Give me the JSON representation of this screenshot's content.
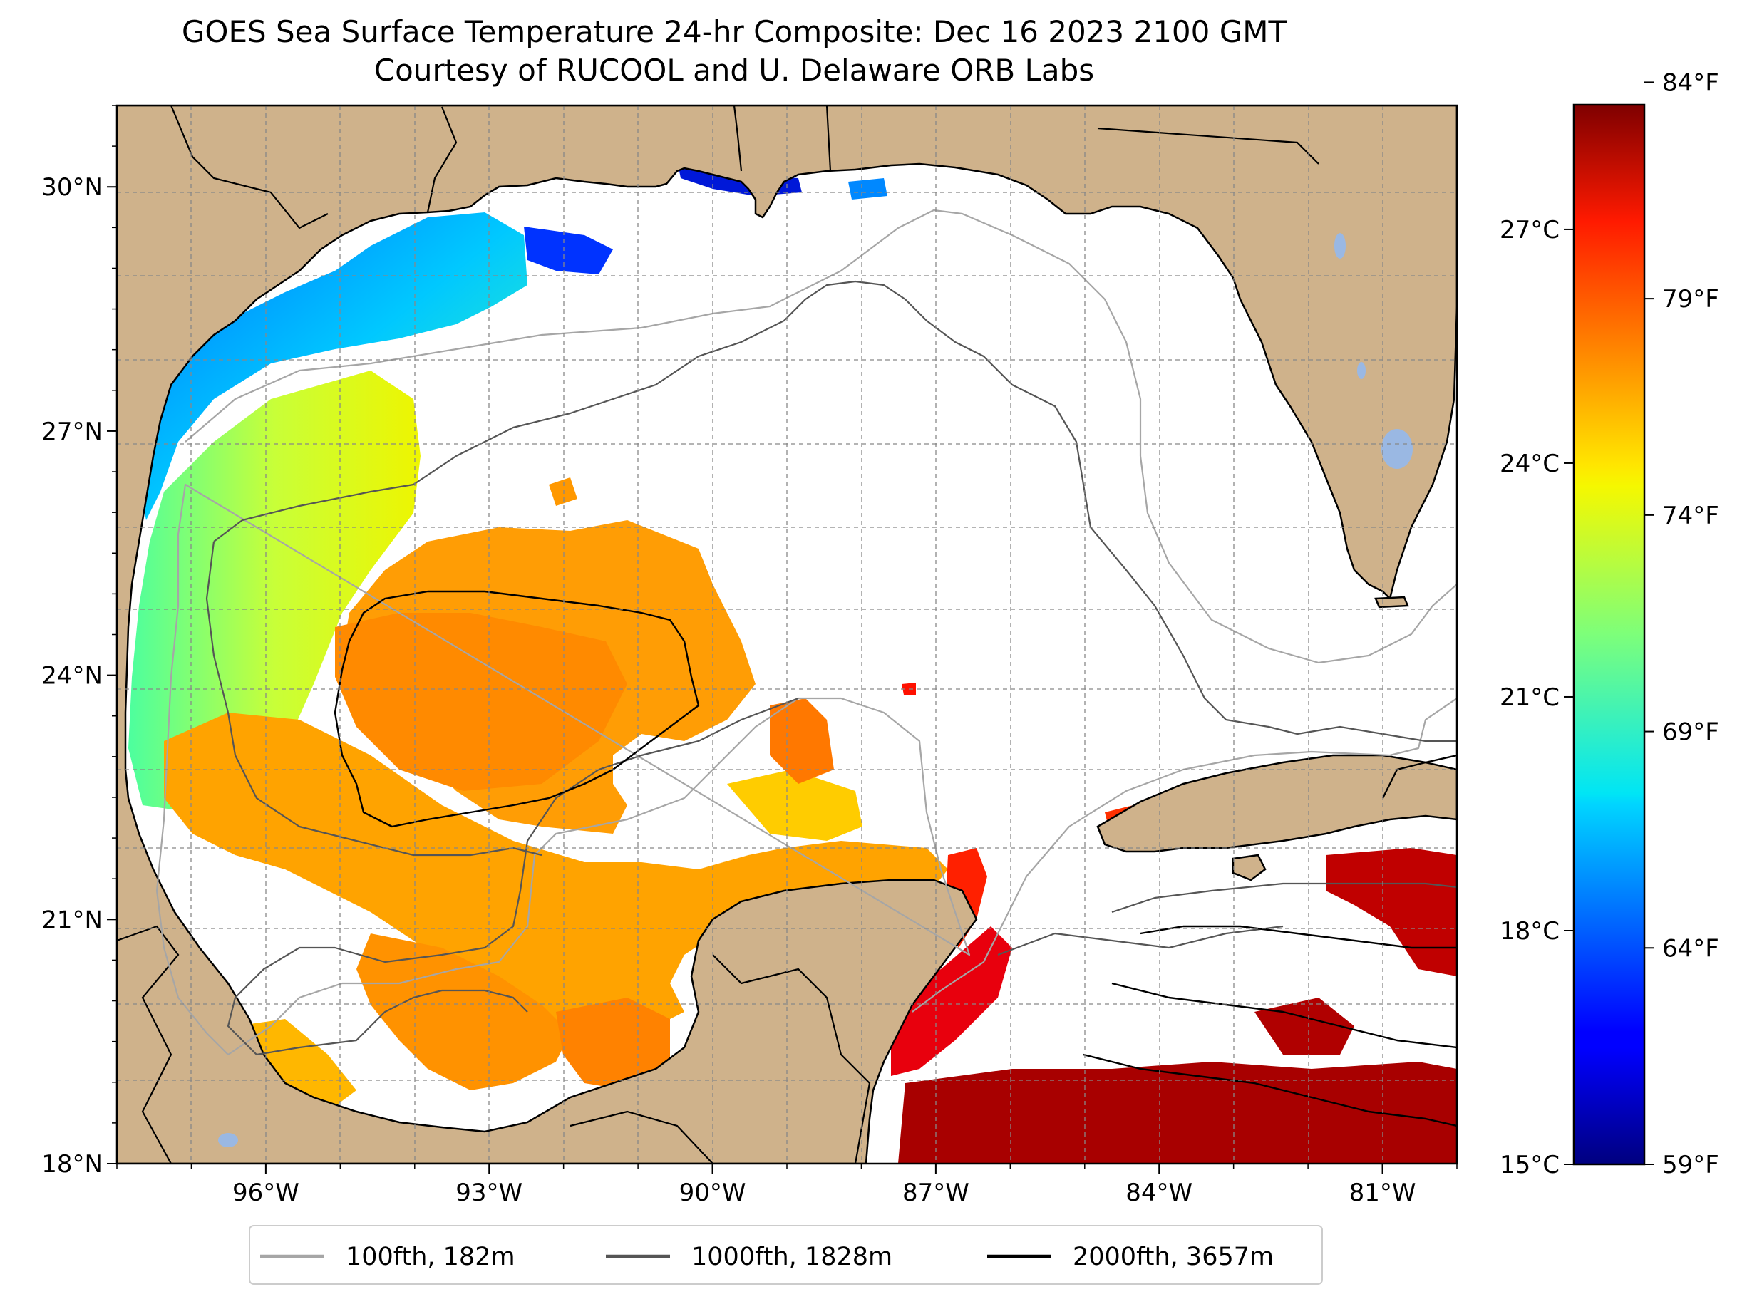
{
  "title": {
    "line1": "GOES Sea Surface Temperature 24-hr Composite: Dec 16 2023 2100 GMT",
    "line2": "Courtesy of RUCOOL and U. Delaware ORB Labs"
  },
  "map": {
    "lon_range": [
      -98.0,
      -80.0
    ],
    "lat_range": [
      18.0,
      31.0
    ],
    "lat_ticks": [
      {
        "value": 30,
        "label": "30°N"
      },
      {
        "value": 27,
        "label": "27°N"
      },
      {
        "value": 24,
        "label": "24°N"
      },
      {
        "value": 21,
        "label": "21°N"
      },
      {
        "value": 18,
        "label": "18°N"
      }
    ],
    "lon_ticks": [
      {
        "value": -96,
        "label": "96°W"
      },
      {
        "value": -93,
        "label": "93°W"
      },
      {
        "value": -90,
        "label": "90°W"
      },
      {
        "value": -87,
        "label": "87°W"
      },
      {
        "value": -84,
        "label": "84°W"
      },
      {
        "value": -81,
        "label": "81°W"
      }
    ],
    "gridlines": true,
    "land_color": "#cfb28b",
    "ocean_no_data_color": "#ffffff",
    "lake_color": "#9ab8e3"
  },
  "colorbar": {
    "colormap": "jet",
    "range_celsius": [
      15,
      28.6
    ],
    "celsius_ticks": [
      {
        "value": 15,
        "label": "15°C"
      },
      {
        "value": 18,
        "label": "18°C"
      },
      {
        "value": 21,
        "label": "21°C"
      },
      {
        "value": 24,
        "label": "24°C"
      },
      {
        "value": 27,
        "label": "27°C"
      }
    ],
    "fahrenheit_ticks": [
      {
        "value": 59,
        "label": "59°F"
      },
      {
        "value": 64,
        "label": "64°F"
      },
      {
        "value": 69,
        "label": "69°F"
      },
      {
        "value": 74,
        "label": "74°F"
      },
      {
        "value": 79,
        "label": "79°F"
      },
      {
        "value": 84,
        "label": "84°F"
      }
    ]
  },
  "legend": {
    "placement": "bottom-center",
    "entries": [
      {
        "label": "100fth, 182m",
        "color": "#a6a6a6"
      },
      {
        "label": "1000fth, 1828m",
        "color": "#555555"
      },
      {
        "label": "2000fth, 3657m",
        "color": "#000000"
      }
    ]
  }
}
